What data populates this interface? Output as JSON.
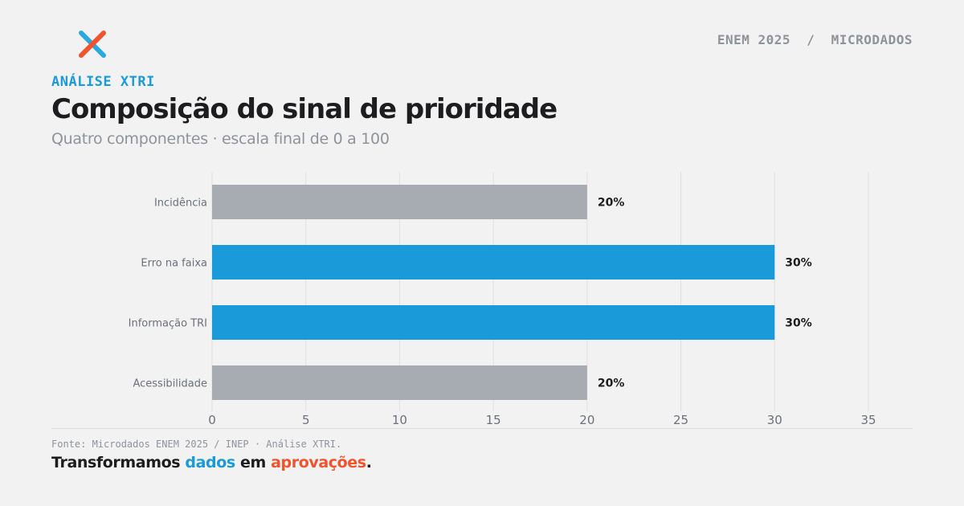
{
  "header": {
    "top_right": "ENEM 2025  /  MICRODADOS",
    "eyebrow": "ANÁLISE XTRI",
    "title": "Composição do sinal de prioridade",
    "subtitle": "Quatro componentes · escala final de 0 a 100"
  },
  "colors": {
    "primary": "#1a9ad9",
    "muted": "#a7abb2",
    "accent": "#f0532d",
    "text": "#1d1d1f"
  },
  "chart_data": {
    "type": "bar",
    "orientation": "horizontal",
    "categories": [
      "Incidência",
      "Erro na faixa",
      "Informação TRI",
      "Acessibilidade"
    ],
    "values": [
      20,
      30,
      30,
      20
    ],
    "data_labels": [
      "20%",
      "30%",
      "30%",
      "20%"
    ],
    "highlight": [
      false,
      true,
      true,
      false
    ],
    "xticks": [
      0,
      5,
      10,
      15,
      20,
      25,
      30,
      35
    ],
    "xlim": [
      0,
      35
    ],
    "grid": true
  },
  "footer": {
    "source": "Fonte: Microdados ENEM 2025 / INEP · Análise XTRI.",
    "tagline_part1": "Transformamos ",
    "tagline_blue": "dados",
    "tagline_part2": " em ",
    "tagline_orange": "aprovações",
    "tagline_end": "."
  }
}
